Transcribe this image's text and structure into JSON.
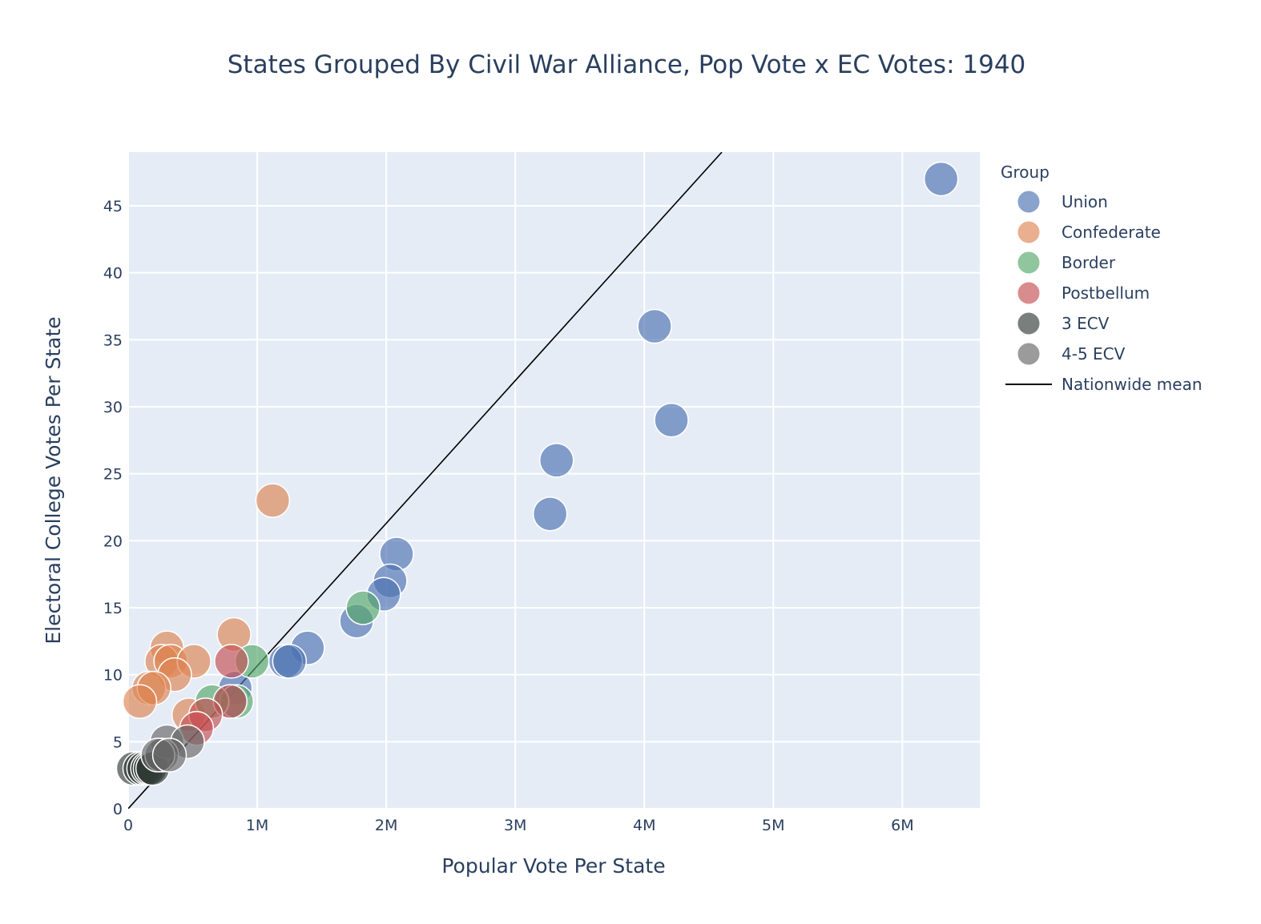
{
  "chart_data": {
    "type": "scatter",
    "title": "States Grouped By Civil War Alliance, Pop Vote x EC Votes: 1940",
    "xlabel": "Popular Vote Per State",
    "ylabel": "Electoral College Votes Per State",
    "xlim": [
      0,
      6600000
    ],
    "ylim": [
      0,
      49
    ],
    "x_ticks": [
      0,
      1000000,
      2000000,
      3000000,
      4000000,
      5000000,
      6000000
    ],
    "x_tick_labels": [
      "0",
      "1M",
      "2M",
      "3M",
      "4M",
      "5M",
      "6M"
    ],
    "y_ticks": [
      0,
      5,
      10,
      15,
      20,
      25,
      30,
      35,
      40,
      45
    ],
    "y_tick_labels": [
      "0",
      "5",
      "10",
      "15",
      "20",
      "25",
      "30",
      "35",
      "40",
      "45"
    ],
    "grid": true,
    "legend_title": "Group",
    "legend_position": "right",
    "series": [
      {
        "name": "Union",
        "color": "#4c72b0",
        "points": [
          {
            "x": 6300000,
            "y": 47
          },
          {
            "x": 4080000,
            "y": 36
          },
          {
            "x": 4210000,
            "y": 29
          },
          {
            "x": 3320000,
            "y": 26
          },
          {
            "x": 3270000,
            "y": 22
          },
          {
            "x": 2080000,
            "y": 19
          },
          {
            "x": 2030000,
            "y": 17
          },
          {
            "x": 1980000,
            "y": 16
          },
          {
            "x": 1770000,
            "y": 14
          },
          {
            "x": 1390000,
            "y": 12
          },
          {
            "x": 1220000,
            "y": 11
          },
          {
            "x": 1250000,
            "y": 11
          },
          {
            "x": 830000,
            "y": 9
          },
          {
            "x": 800000,
            "y": 8
          }
        ]
      },
      {
        "name": "Confederate",
        "color": "#dd8452",
        "points": [
          {
            "x": 1120000,
            "y": 23
          },
          {
            "x": 820000,
            "y": 13
          },
          {
            "x": 300000,
            "y": 12
          },
          {
            "x": 260000,
            "y": 11
          },
          {
            "x": 330000,
            "y": 11
          },
          {
            "x": 510000,
            "y": 11
          },
          {
            "x": 360000,
            "y": 10
          },
          {
            "x": 160000,
            "y": 9
          },
          {
            "x": 200000,
            "y": 9
          },
          {
            "x": 90000,
            "y": 8
          },
          {
            "x": 470000,
            "y": 7
          }
        ]
      },
      {
        "name": "Border",
        "color": "#55a868",
        "points": [
          {
            "x": 1820000,
            "y": 15
          },
          {
            "x": 960000,
            "y": 11
          },
          {
            "x": 840000,
            "y": 8
          },
          {
            "x": 650000,
            "y": 8
          }
        ]
      },
      {
        "name": "Postbellum",
        "color": "#c44e52",
        "points": [
          {
            "x": 800000,
            "y": 11
          },
          {
            "x": 790000,
            "y": 8
          },
          {
            "x": 600000,
            "y": 7
          },
          {
            "x": 530000,
            "y": 6
          }
        ]
      },
      {
        "name": "3 ECV",
        "color": "#2f3b35",
        "points": [
          {
            "x": 40000,
            "y": 3
          },
          {
            "x": 90000,
            "y": 3
          },
          {
            "x": 120000,
            "y": 3
          },
          {
            "x": 150000,
            "y": 3
          },
          {
            "x": 170000,
            "y": 3
          },
          {
            "x": 190000,
            "y": 3
          }
        ]
      },
      {
        "name": "4-5 ECV",
        "color": "#666666",
        "points": [
          {
            "x": 300000,
            "y": 5
          },
          {
            "x": 460000,
            "y": 5
          },
          {
            "x": 260000,
            "y": 4
          },
          {
            "x": 230000,
            "y": 4
          },
          {
            "x": 320000,
            "y": 4
          }
        ]
      }
    ],
    "reference_line": {
      "name": "Nationwide mean",
      "color": "#000000",
      "slope_ec_per_vote": 1.065e-05
    }
  }
}
